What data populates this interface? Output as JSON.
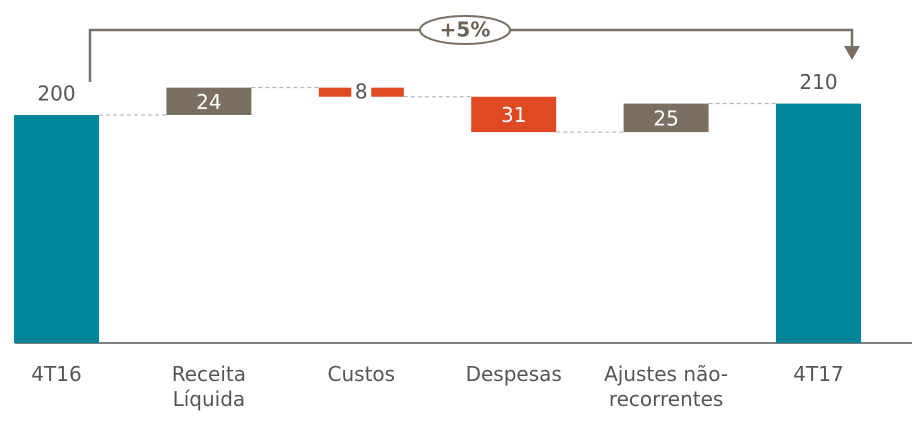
{
  "chart_data": {
    "type": "waterfall",
    "categories": [
      "4T16",
      "Receita Líquida",
      "Custos",
      "Despesas",
      "Ajustes não-recorrentes",
      "4T17"
    ],
    "values": [
      200,
      24,
      8,
      31,
      25,
      210
    ],
    "kinds": [
      "total",
      "increase",
      "decrease",
      "decrease",
      "increase",
      "total"
    ],
    "colors": {
      "total": "#00869a",
      "increase": "#7a6f60",
      "decrease": "#e04a23"
    },
    "annotation": "+5%"
  }
}
